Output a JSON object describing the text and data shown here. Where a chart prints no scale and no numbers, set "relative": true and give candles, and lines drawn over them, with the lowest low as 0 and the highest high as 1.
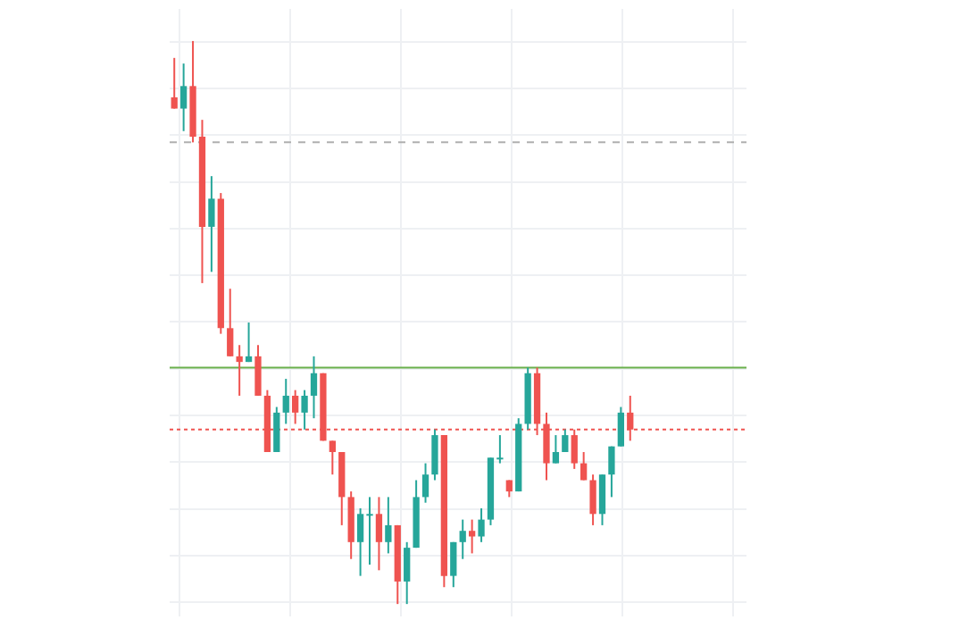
{
  "chart_data": {
    "type": "candlestick",
    "relative": true,
    "grid": true,
    "categories": [
      null,
      null,
      null,
      null,
      null,
      null,
      null,
      null,
      null,
      null,
      null,
      null,
      null,
      null,
      null,
      null,
      null,
      null,
      null,
      null,
      null,
      null,
      null,
      null,
      null,
      null,
      null,
      null,
      null,
      null,
      null,
      null,
      null,
      null,
      null,
      null,
      null,
      null,
      null,
      null,
      null,
      null,
      null,
      null,
      null,
      null,
      null,
      null,
      null,
      null
    ],
    "ohlc": [
      [
        0.9,
        0.97,
        0.88,
        0.88
      ],
      [
        0.88,
        0.96,
        0.84,
        0.92
      ],
      [
        0.92,
        1.0,
        0.82,
        0.83
      ],
      [
        0.83,
        0.86,
        0.57,
        0.67
      ],
      [
        0.67,
        0.76,
        0.59,
        0.72
      ],
      [
        0.72,
        0.73,
        0.48,
        0.49
      ],
      [
        0.49,
        0.56,
        0.44,
        0.44
      ],
      [
        0.44,
        0.46,
        0.37,
        0.43
      ],
      [
        0.43,
        0.5,
        0.43,
        0.44
      ],
      [
        0.44,
        0.46,
        0.37,
        0.37
      ],
      [
        0.37,
        0.38,
        0.27,
        0.27
      ],
      [
        0.27,
        0.35,
        0.27,
        0.34
      ],
      [
        0.34,
        0.4,
        0.32,
        0.37
      ],
      [
        0.37,
        0.38,
        0.32,
        0.34
      ],
      [
        0.34,
        0.38,
        0.31,
        0.37
      ],
      [
        0.37,
        0.44,
        0.33,
        0.41
      ],
      [
        0.41,
        0.41,
        0.29,
        0.29
      ],
      [
        0.29,
        0.29,
        0.23,
        0.27
      ],
      [
        0.27,
        0.27,
        0.14,
        0.19
      ],
      [
        0.19,
        0.2,
        0.08,
        0.11
      ],
      [
        0.11,
        0.17,
        0.05,
        0.16
      ],
      [
        0.16,
        0.19,
        0.07,
        0.16
      ],
      [
        0.16,
        0.19,
        0.06,
        0.11
      ],
      [
        0.11,
        0.19,
        0.09,
        0.14
      ],
      [
        0.14,
        0.14,
        0.0,
        0.04
      ],
      [
        0.04,
        0.11,
        0.0,
        0.1
      ],
      [
        0.1,
        0.22,
        0.1,
        0.19
      ],
      [
        0.19,
        0.25,
        0.18,
        0.23
      ],
      [
        0.23,
        0.31,
        0.22,
        0.3
      ],
      [
        0.3,
        0.3,
        0.03,
        0.05
      ],
      [
        0.05,
        0.11,
        0.03,
        0.11
      ],
      [
        0.11,
        0.15,
        0.08,
        0.13
      ],
      [
        0.13,
        0.15,
        0.09,
        0.12
      ],
      [
        0.12,
        0.17,
        0.11,
        0.15
      ],
      [
        0.15,
        0.26,
        0.14,
        0.26
      ],
      [
        0.26,
        0.3,
        0.25,
        0.26
      ],
      [
        0.22,
        0.22,
        0.19,
        0.2
      ],
      [
        0.2,
        0.33,
        0.2,
        0.32
      ],
      [
        0.32,
        0.42,
        0.31,
        0.41
      ],
      [
        0.41,
        0.42,
        0.3,
        0.32
      ],
      [
        0.32,
        0.34,
        0.22,
        0.25
      ],
      [
        0.25,
        0.3,
        0.25,
        0.27
      ],
      [
        0.27,
        0.31,
        0.27,
        0.3
      ],
      [
        0.3,
        0.31,
        0.24,
        0.25
      ],
      [
        0.25,
        0.27,
        0.22,
        0.22
      ],
      [
        0.22,
        0.23,
        0.14,
        0.16
      ],
      [
        0.16,
        0.23,
        0.14,
        0.23
      ],
      [
        0.23,
        0.28,
        0.19,
        0.28
      ],
      [
        0.28,
        0.35,
        0.28,
        0.34
      ],
      [
        0.34,
        0.37,
        0.29,
        0.31
      ]
    ],
    "colors": [
      "#ef5350",
      "#26a69a",
      "#ef5350",
      "#ef5350",
      "#26a69a",
      "#ef5350",
      "#ef5350",
      "#ef5350",
      "#26a69a",
      "#ef5350",
      "#ef5350",
      "#26a69a",
      "#26a69a",
      "#ef5350",
      "#26a69a",
      "#26a69a",
      "#ef5350",
      "#ef5350",
      "#ef5350",
      "#ef5350",
      "#26a69a",
      "#26a69a",
      "#ef5350",
      "#26a69a",
      "#ef5350",
      "#26a69a",
      "#26a69a",
      "#26a69a",
      "#26a69a",
      "#ef5350",
      "#26a69a",
      "#26a69a",
      "#ef5350",
      "#26a69a",
      "#26a69a",
      "#26a69a",
      "#ef5350",
      "#26a69a",
      "#26a69a",
      "#ef5350",
      "#ef5350",
      "#26a69a",
      "#26a69a",
      "#ef5350",
      "#ef5350",
      "#ef5350",
      "#26a69a",
      "#26a69a",
      "#26a69a",
      "#ef5350"
    ],
    "ref_lines": [
      {
        "axis": "y",
        "value": 0.82,
        "color": "#b0b0b0",
        "line_style": "dashed"
      },
      {
        "axis": "y",
        "value": 0.42,
        "color": "#6ab04c",
        "line_style": "solid"
      },
      {
        "axis": "y",
        "value": 0.31,
        "color": "#ef5350",
        "line_style": "dotted"
      }
    ]
  }
}
